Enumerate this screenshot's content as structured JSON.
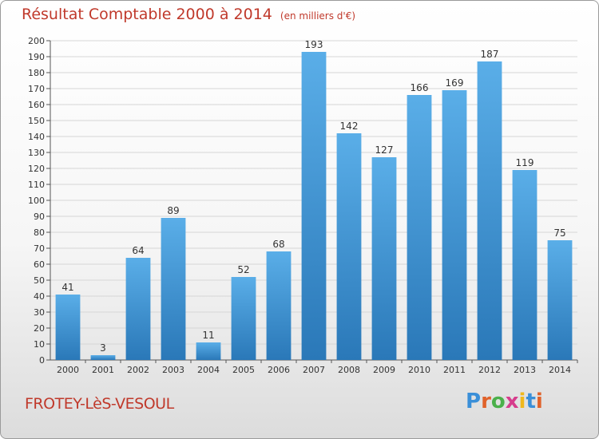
{
  "header": {
    "title": "Résultat Comptable 2000 à 2014",
    "unit": "(en milliers d'€)"
  },
  "footer": {
    "commune": "FROTEY-LèS-VESOUL",
    "logo_text": "Proxiti"
  },
  "colors": {
    "title": "#c0392b",
    "bar_top": "#5aaee8",
    "bar_bottom": "#2a78b8",
    "grid": "#d6d6d6"
  },
  "chart_data": {
    "type": "bar",
    "title": "Résultat Comptable 2000 à 2014",
    "subtitle": "(en milliers d'€)",
    "xlabel": "",
    "ylabel": "",
    "categories": [
      "2000",
      "2001",
      "2002",
      "2003",
      "2004",
      "2005",
      "2006",
      "2007",
      "2008",
      "2009",
      "2010",
      "2011",
      "2012",
      "2013",
      "2014"
    ],
    "values": [
      41,
      3,
      64,
      89,
      11,
      52,
      68,
      193,
      142,
      127,
      166,
      169,
      187,
      119,
      75
    ],
    "ylim": [
      0,
      200
    ],
    "ytick_step": 10,
    "grid": true,
    "data_labels": true
  }
}
